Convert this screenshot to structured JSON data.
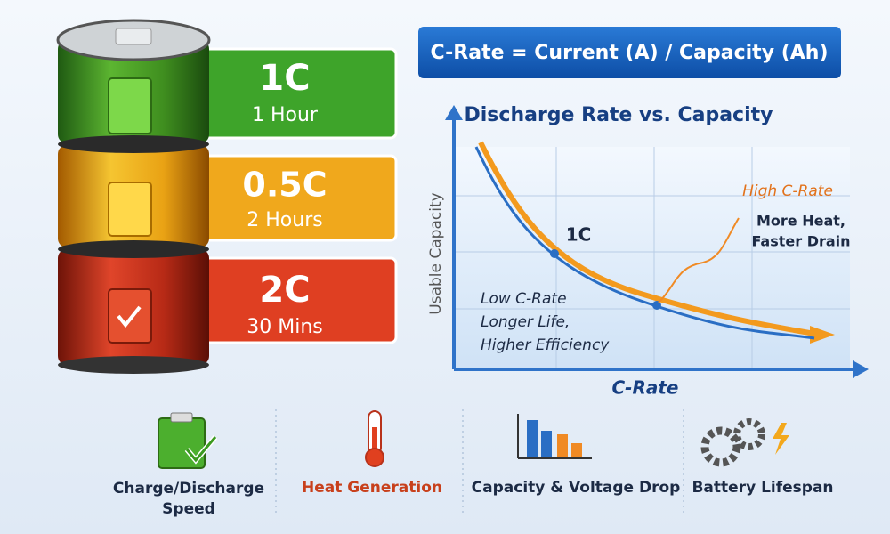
{
  "formula": "C-Rate = Current (A) / Capacity (Ah)",
  "battery": {
    "segments": [
      {
        "rate": "1C",
        "time": "1 Hour"
      },
      {
        "rate": "0.5C",
        "time": "2 Hours"
      },
      {
        "rate": "2C",
        "time": "30 Mins"
      }
    ]
  },
  "graph": {
    "title": "Discharge Rate vs. Capacity",
    "x_label": "C-Rate",
    "y_label": "Usable Capacity",
    "point_label": "1C",
    "high": {
      "title": "High C-Rate",
      "lines": [
        "More Heat,",
        "Faster Drain"
      ]
    },
    "low": {
      "lines": [
        "Low C-Rate",
        "Longer Life,",
        "Higher Efficiency"
      ]
    }
  },
  "features": [
    {
      "lines": [
        "Charge/Discharge",
        "Speed"
      ]
    },
    {
      "lines": [
        "Heat Generation"
      ]
    },
    {
      "lines": [
        "Capacity & Voltage Drop"
      ]
    },
    {
      "lines": [
        "Battery Lifespan"
      ]
    }
  ]
}
